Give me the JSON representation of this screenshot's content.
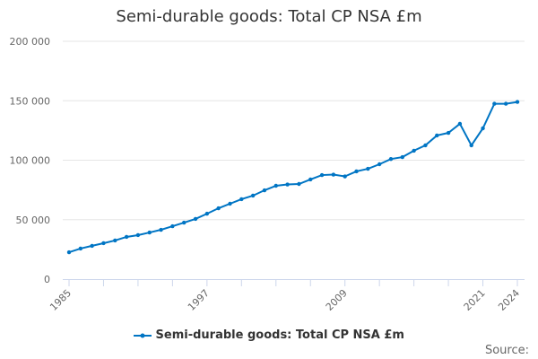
{
  "chart_data": {
    "type": "line",
    "title": "Semi-durable goods: Total CP NSA £m",
    "xlabel": "",
    "ylabel": "",
    "ylim": [
      0,
      200000
    ],
    "y_ticks": [
      0,
      50000,
      100000,
      150000,
      200000
    ],
    "y_tick_labels": [
      "0",
      "50 000",
      "100 000",
      "150 000",
      "200 000"
    ],
    "x_tick_labels": [
      "1985",
      "1997",
      "2009",
      "2021",
      "2024"
    ],
    "grid": true,
    "legend_position": "bottom",
    "color": "#0075c4",
    "series": [
      {
        "name": "Semi-durable goods: Total CP NSA £m",
        "x": [
          1985,
          1986,
          1987,
          1988,
          1989,
          1990,
          1991,
          1992,
          1993,
          1994,
          1995,
          1996,
          1997,
          1998,
          1999,
          2000,
          2001,
          2002,
          2003,
          2004,
          2005,
          2006,
          2007,
          2008,
          2009,
          2010,
          2011,
          2012,
          2013,
          2014,
          2015,
          2016,
          2017,
          2018,
          2019,
          2020,
          2021,
          2022,
          2023,
          2024
        ],
        "values": [
          22600,
          25700,
          28000,
          30200,
          32500,
          35500,
          37000,
          39200,
          41500,
          44500,
          47500,
          50600,
          55000,
          59600,
          63400,
          67200,
          70200,
          74700,
          78500,
          79600,
          80000,
          83800,
          87500,
          87900,
          86400,
          90600,
          92800,
          96600,
          101000,
          102600,
          108000,
          112500,
          120800,
          123000,
          130600,
          112500,
          126800,
          147500,
          147500,
          149000
        ]
      }
    ]
  },
  "source_label": "Source:"
}
